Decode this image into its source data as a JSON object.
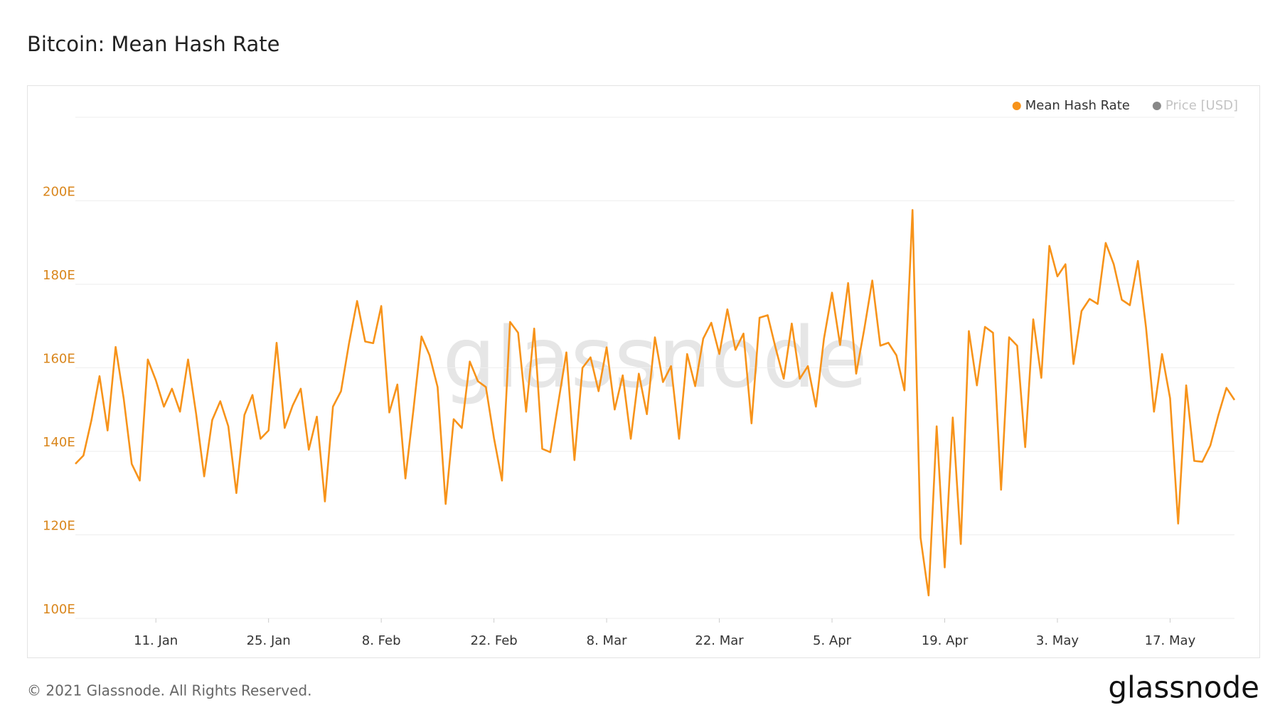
{
  "chart_data": {
    "type": "line",
    "title": "Bitcoin: Mean Hash Rate",
    "watermark": "glassnode",
    "footer": "© 2021 Glassnode. All Rights Reserved.",
    "logo": "glassnode",
    "categories": [
      null,
      null,
      null,
      null,
      null,
      null,
      null,
      null,
      null,
      null,
      "11. Jan",
      null,
      null,
      null,
      null,
      null,
      null,
      null,
      null,
      null,
      null,
      null,
      null,
      null,
      "25. Jan",
      null,
      null,
      null,
      null,
      null,
      null,
      null,
      null,
      null,
      null,
      null,
      null,
      null,
      "8. Feb",
      null,
      null,
      null,
      null,
      null,
      null,
      null,
      null,
      null,
      null,
      null,
      null,
      null,
      "22. Feb",
      null,
      null,
      null,
      null,
      null,
      null,
      null,
      null,
      null,
      null,
      null,
      null,
      null,
      "8. Mar",
      null,
      null,
      null,
      null,
      null,
      null,
      null,
      null,
      null,
      null,
      null,
      null,
      null,
      "22. Mar",
      null,
      null,
      null,
      null,
      null,
      null,
      null,
      null,
      null,
      null,
      null,
      null,
      null,
      "5. Apr",
      null,
      null,
      null,
      null,
      null,
      null,
      null,
      null,
      null,
      null,
      null,
      null,
      null,
      "19. Apr",
      null,
      null,
      null,
      null,
      null,
      null,
      null,
      null,
      null,
      null,
      null,
      null,
      null,
      "3. May",
      null,
      null,
      null,
      null,
      null,
      null,
      null,
      null,
      null,
      null,
      null,
      null,
      null,
      "17. May",
      null,
      null,
      null,
      null,
      null,
      null,
      null,
      null
    ],
    "series": [
      {
        "name": "Mean Hash Rate",
        "color": "#f7931a",
        "values": [
          137,
          139,
          147.5,
          158,
          145,
          165,
          152.7,
          137,
          133,
          162,
          157,
          150.7,
          155,
          149.5,
          162,
          149,
          134,
          147.5,
          152,
          146,
          130,
          148.7,
          153.5,
          143,
          145,
          166,
          145.6,
          151,
          155,
          140.4,
          148.3,
          128,
          150.7,
          154.4,
          165.9,
          176,
          166.3,
          165.9,
          174.8,
          149.3,
          156,
          133.5,
          150,
          167.5,
          163,
          155.4,
          127.4,
          147.7,
          145.6,
          161.5,
          156.8,
          155.4,
          143.2,
          133,
          171,
          168.4,
          149.5,
          169.4,
          140.6,
          139.8,
          151.7,
          163.7,
          137.9,
          160,
          162.5,
          154.4,
          164.9,
          150,
          158.2,
          143,
          158.6,
          148.9,
          167.3,
          156.6,
          160.4,
          143,
          163.3,
          155.6,
          167,
          170.8,
          163.3,
          174,
          164.3,
          168.2,
          146.7,
          172,
          172.6,
          164.7,
          157.4,
          170.6,
          157.4,
          160.4,
          150.7,
          167,
          178,
          165.5,
          180.3,
          158.6,
          169.2,
          180.9,
          165.3,
          166,
          163,
          154.6,
          197.8,
          119.3,
          105.5,
          146,
          112.2,
          148.1,
          117.8,
          168.8,
          155.8,
          169.8,
          168.4,
          130.8,
          167.3,
          165.3,
          141,
          171.6,
          157.6,
          189.2,
          181.9,
          184.8,
          160.9,
          173.6,
          176.5,
          175.3,
          189.9,
          184.8,
          176.3,
          175,
          185.6,
          169.8,
          149.5,
          163.3,
          152.7,
          122.7,
          155.8,
          137.7,
          137.5,
          141.4,
          148.7,
          155.2,
          152.3
        ]
      }
    ],
    "inactive_series": {
      "name": "Price [USD]",
      "color": "#888888"
    },
    "ylim": [
      100,
      220
    ],
    "yticks": [
      {
        "value": 100,
        "label": "100E"
      },
      {
        "value": 120,
        "label": "120E"
      },
      {
        "value": 140,
        "label": "140E"
      },
      {
        "value": 160,
        "label": "160E"
      },
      {
        "value": 180,
        "label": "180E"
      },
      {
        "value": 200,
        "label": "200E"
      }
    ],
    "grid": true,
    "legend": "top-right"
  }
}
